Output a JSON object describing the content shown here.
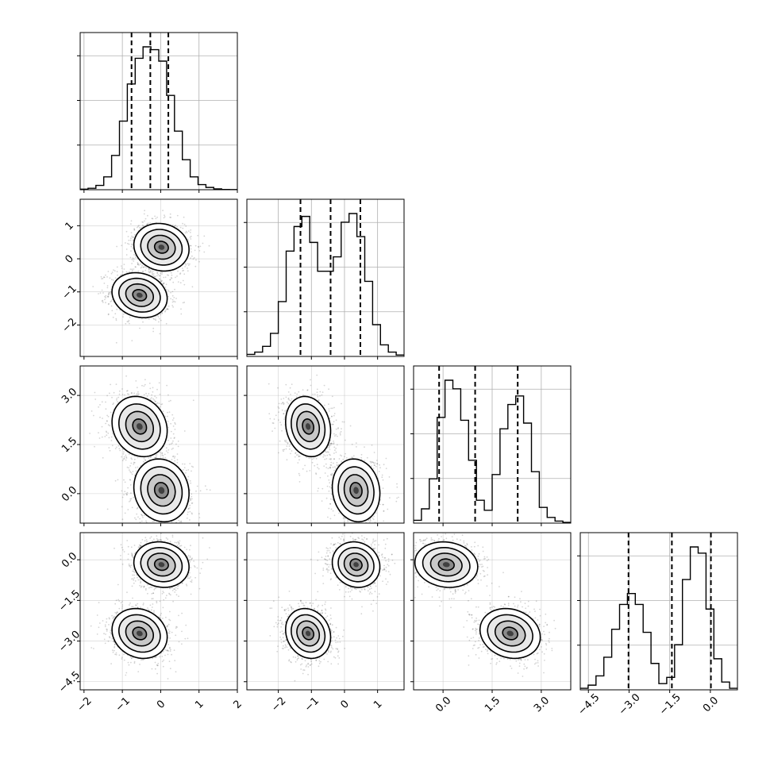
{
  "chart_data": {
    "type": "corner",
    "title": "",
    "parameters": [
      {
        "index": 0,
        "range": [
          -2.1,
          2.0
        ],
        "ticks": [
          -2,
          -1,
          0,
          1,
          2
        ],
        "tick_labels": [
          "−2",
          "−1",
          "0",
          "1",
          "2"
        ]
      },
      {
        "index": 1,
        "range": [
          -2.95,
          1.8
        ],
        "ticks": [
          -2,
          -1,
          0,
          1
        ],
        "tick_labels": [
          "−2",
          "−1",
          "0",
          "1"
        ]
      },
      {
        "index": 2,
        "range": [
          -0.9,
          3.9
        ],
        "ticks": [
          0.0,
          1.5,
          3.0
        ],
        "tick_labels": [
          "0.0",
          "1.5",
          "3.0"
        ]
      },
      {
        "index": 3,
        "range": [
          -4.8,
          1.0
        ],
        "ticks": [
          -4.5,
          -3.0,
          -1.5,
          0.0
        ],
        "tick_labels": [
          "−4.5",
          "−3.0",
          "−1.5",
          "0.0"
        ]
      }
    ],
    "histograms": [
      {
        "param": 0,
        "bin_start": -2.1,
        "bin_width": 0.205,
        "counts": [
          0.4,
          1.0,
          3.0,
          9.0,
          24.0,
          48.0,
          74.0,
          92.0,
          100.0,
          98.0,
          90.0,
          66.0,
          41.0,
          21.0,
          9.0,
          3.6,
          1.6,
          0.6,
          0.2,
          0.1
        ],
        "quantiles": [
          -0.76,
          -0.27,
          0.2
        ]
      },
      {
        "param": 1,
        "bin_start": -2.95,
        "bin_width": 0.2375,
        "counts": [
          1.4,
          3.0,
          7.0,
          16.0,
          38.0,
          73.0,
          90.0,
          97.0,
          79.0,
          59.0,
          59.0,
          69.0,
          93.0,
          99.0,
          83.0,
          52.0,
          22.0,
          8.0,
          3.0,
          1.0
        ],
        "quantiles": [
          -1.33,
          -0.42,
          0.48
        ]
      },
      {
        "param": 2,
        "bin_start": -0.9,
        "bin_width": 0.24,
        "counts": [
          2.0,
          10.0,
          31.0,
          74.0,
          100.0,
          94.0,
          72.0,
          44.0,
          16.0,
          9.0,
          34.0,
          66.0,
          83.0,
          89.0,
          70.0,
          36.0,
          11.0,
          4.0,
          1.4,
          0.5
        ],
        "quantiles": [
          -0.12,
          0.98,
          2.28
        ]
      },
      {
        "param": 3,
        "bin_start": -4.8,
        "bin_width": 0.29,
        "counts": [
          1.0,
          3.0,
          9.0,
          21.0,
          39.0,
          55.0,
          62.0,
          55.0,
          37.0,
          17.0,
          4.0,
          8.0,
          29.0,
          71.0,
          92.0,
          88.0,
          52.0,
          20.0,
          5.0,
          1.0
        ],
        "quantiles": [
          -3.02,
          -1.42,
          0.02
        ]
      }
    ],
    "components": [
      {
        "weight": 0.5,
        "mean": [
          -0.55,
          -1.1,
          2.05,
          -2.72
        ],
        "sd": [
          0.36,
          0.34,
          0.46,
          0.46
        ],
        "corr": -0.15
      },
      {
        "weight": 0.5,
        "mean": [
          0.02,
          0.35,
          0.1,
          -0.18
        ],
        "sd": [
          0.36,
          0.36,
          0.48,
          0.42
        ],
        "corr": -0.1
      }
    ],
    "contour_levels_sigma": [
      0.5,
      1.0,
      1.5,
      2.0
    ],
    "grid": true,
    "colors": {
      "line": "#000000",
      "scatter": "#000000",
      "grid": "#b0b0b0",
      "hist_step": "#000000"
    }
  }
}
